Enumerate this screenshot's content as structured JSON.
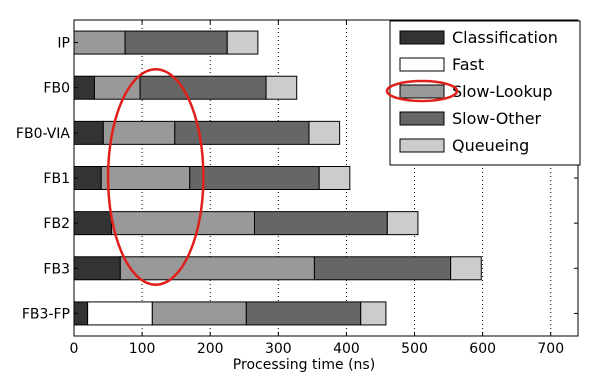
{
  "chart_data": {
    "type": "bar",
    "orientation": "horizontal",
    "stacked": true,
    "xlabel": "Processing time (ns)",
    "ylabel": "",
    "xlim": [
      0,
      740
    ],
    "xticks": [
      0,
      100,
      200,
      300,
      400,
      500,
      600,
      700
    ],
    "grid": "vertical dotted",
    "legend_position": "top-right",
    "categories": [
      "IP",
      "FB0",
      "FB0-VIA",
      "FB1",
      "FB2",
      "FB3",
      "FB3-FP"
    ],
    "series": [
      {
        "name": "Classification",
        "color": "#333333",
        "values": [
          0,
          30,
          43,
          40,
          55,
          68,
          20
        ]
      },
      {
        "name": "Fast",
        "color": "#ffffff",
        "values": [
          0,
          0,
          0,
          0,
          0,
          0,
          95
        ]
      },
      {
        "name": "Slow-Lookup",
        "color": "#999999",
        "values": [
          75,
          67,
          105,
          130,
          210,
          285,
          138
        ]
      },
      {
        "name": "Slow-Other",
        "color": "#666666",
        "values": [
          150,
          185,
          197,
          190,
          195,
          200,
          168
        ]
      },
      {
        "name": "Queueing",
        "color": "#cccccc",
        "values": [
          45,
          45,
          45,
          45,
          45,
          45,
          37
        ]
      }
    ],
    "annotations": [
      {
        "type": "ellipse",
        "color": "#e0201a",
        "cx": 120,
        "cy_category_span": [
          "FB0",
          "FB3"
        ],
        "rx": 70
      },
      {
        "type": "ellipse",
        "color": "#e0201a",
        "attached_to_legend": "Slow-Lookup"
      }
    ]
  }
}
